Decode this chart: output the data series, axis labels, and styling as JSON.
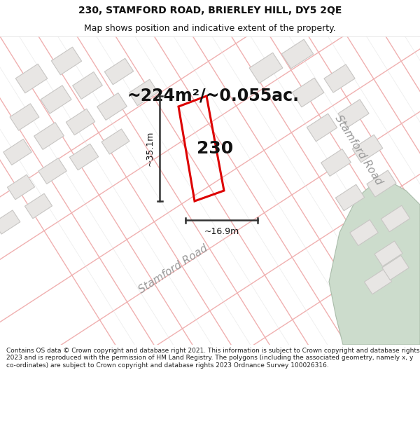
{
  "title_line1": "230, STAMFORD ROAD, BRIERLEY HILL, DY5 2QE",
  "title_line2": "Map shows position and indicative extent of the property.",
  "area_label": "~224m²/~0.055ac.",
  "property_label": "230",
  "measure_v": "~35.1m",
  "measure_h": "~16.9m",
  "road_label_bottom": "Stamford Road",
  "road_label_right": "Stamford Road",
  "footer": "Contains OS data © Crown copyright and database right 2021. This information is subject to Crown copyright and database rights 2023 and is reproduced with the permission of HM Land Registry. The polygons (including the associated geometry, namely x, y co-ordinates) are subject to Crown copyright and database rights 2023 Ordnance Survey 100026316.",
  "map_bg": "#f7f5f2",
  "road_line_color": "#f0b0b0",
  "road_line_color2": "#dcdcdc",
  "building_fill": "#e8e6e4",
  "building_edge": "#c8c6c4",
  "property_color": "#dd0000",
  "text_color": "#111111",
  "measure_color": "#333333",
  "green_area_color": "#ccdccc",
  "green_edge_color": "#aabcaa",
  "title_fontsize": 10,
  "subtitle_fontsize": 9,
  "area_fontsize": 17,
  "prop_label_fontsize": 18,
  "measure_fontsize": 9,
  "road_label_fontsize": 11,
  "footer_fontsize": 6.5
}
